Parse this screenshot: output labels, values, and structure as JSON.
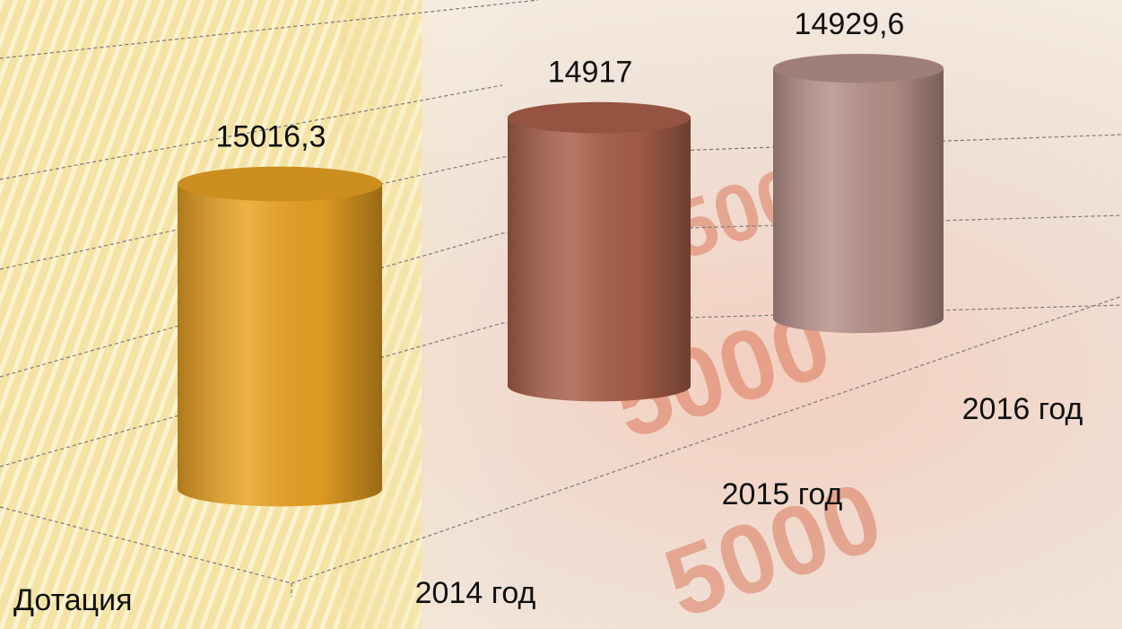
{
  "chart_data": {
    "type": "bar",
    "categories": [
      "2014 год",
      "2015 год",
      "2016 год"
    ],
    "series": [
      {
        "name": "Дотация",
        "colors": [
          "#e9a223",
          "#a9604a",
          "#b8918a"
        ],
        "values": [
          15016.3,
          14917,
          14929.6
        ],
        "value_labels": [
          "15016,3",
          "14917",
          "14929,6"
        ]
      }
    ]
  }
}
